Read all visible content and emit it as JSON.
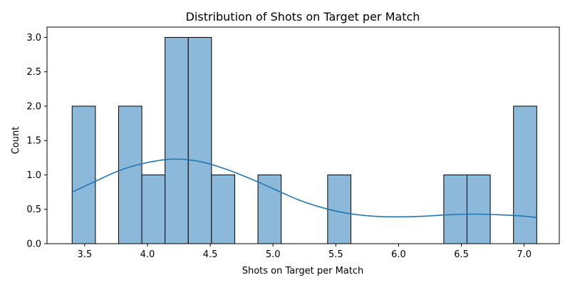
{
  "chart_data": {
    "type": "bar",
    "subtype": "histogram",
    "title": "Distribution of Shots on Target per Match",
    "xlabel": "Shots on Target per Match",
    "ylabel": "Count",
    "xlim": [
      3.2,
      7.28
    ],
    "ylim": [
      0,
      3.15
    ],
    "xticks": [
      "3.5",
      "4.0",
      "4.5",
      "5.0",
      "5.5",
      "6.0",
      "6.5",
      "7.0"
    ],
    "yticks": [
      "0.0",
      "0.5",
      "1.0",
      "1.5",
      "2.0",
      "2.5",
      "3.0"
    ],
    "bins": [
      {
        "x0": 3.4,
        "x1": 3.585,
        "count": 2
      },
      {
        "x0": 3.585,
        "x1": 3.77,
        "count": 0
      },
      {
        "x0": 3.77,
        "x1": 3.955,
        "count": 2
      },
      {
        "x0": 3.955,
        "x1": 4.14,
        "count": 1
      },
      {
        "x0": 4.14,
        "x1": 4.325,
        "count": 3
      },
      {
        "x0": 4.325,
        "x1": 4.51,
        "count": 3
      },
      {
        "x0": 4.51,
        "x1": 4.695,
        "count": 1
      },
      {
        "x0": 4.695,
        "x1": 4.88,
        "count": 0
      },
      {
        "x0": 4.88,
        "x1": 5.065,
        "count": 1
      },
      {
        "x0": 5.065,
        "x1": 5.25,
        "count": 0
      },
      {
        "x0": 5.25,
        "x1": 5.435,
        "count": 0
      },
      {
        "x0": 5.435,
        "x1": 5.62,
        "count": 1
      },
      {
        "x0": 5.62,
        "x1": 5.805,
        "count": 0
      },
      {
        "x0": 5.805,
        "x1": 5.99,
        "count": 0
      },
      {
        "x0": 5.99,
        "x1": 6.175,
        "count": 0
      },
      {
        "x0": 6.175,
        "x1": 6.36,
        "count": 0
      },
      {
        "x0": 6.36,
        "x1": 6.545,
        "count": 1
      },
      {
        "x0": 6.545,
        "x1": 6.73,
        "count": 1
      },
      {
        "x0": 6.73,
        "x1": 6.915,
        "count": 0
      },
      {
        "x0": 6.915,
        "x1": 7.1,
        "count": 2
      }
    ],
    "kde_curve": {
      "x": [
        3.4,
        3.6,
        3.8,
        4.0,
        4.2,
        4.4,
        4.6,
        4.8,
        5.0,
        5.2,
        5.4,
        5.6,
        5.8,
        6.0,
        6.2,
        6.4,
        6.6,
        6.8,
        7.0,
        7.1
      ],
      "y": [
        0.75,
        0.92,
        1.08,
        1.18,
        1.23,
        1.2,
        1.1,
        0.96,
        0.8,
        0.64,
        0.52,
        0.44,
        0.4,
        0.39,
        0.4,
        0.42,
        0.43,
        0.42,
        0.4,
        0.38
      ]
    },
    "colors": {
      "bar_fill": "#8cb8d9",
      "bar_stroke": "#000000",
      "kde_line": "#1f77b4",
      "axis": "#000000"
    },
    "grid": false,
    "legend": "none"
  }
}
